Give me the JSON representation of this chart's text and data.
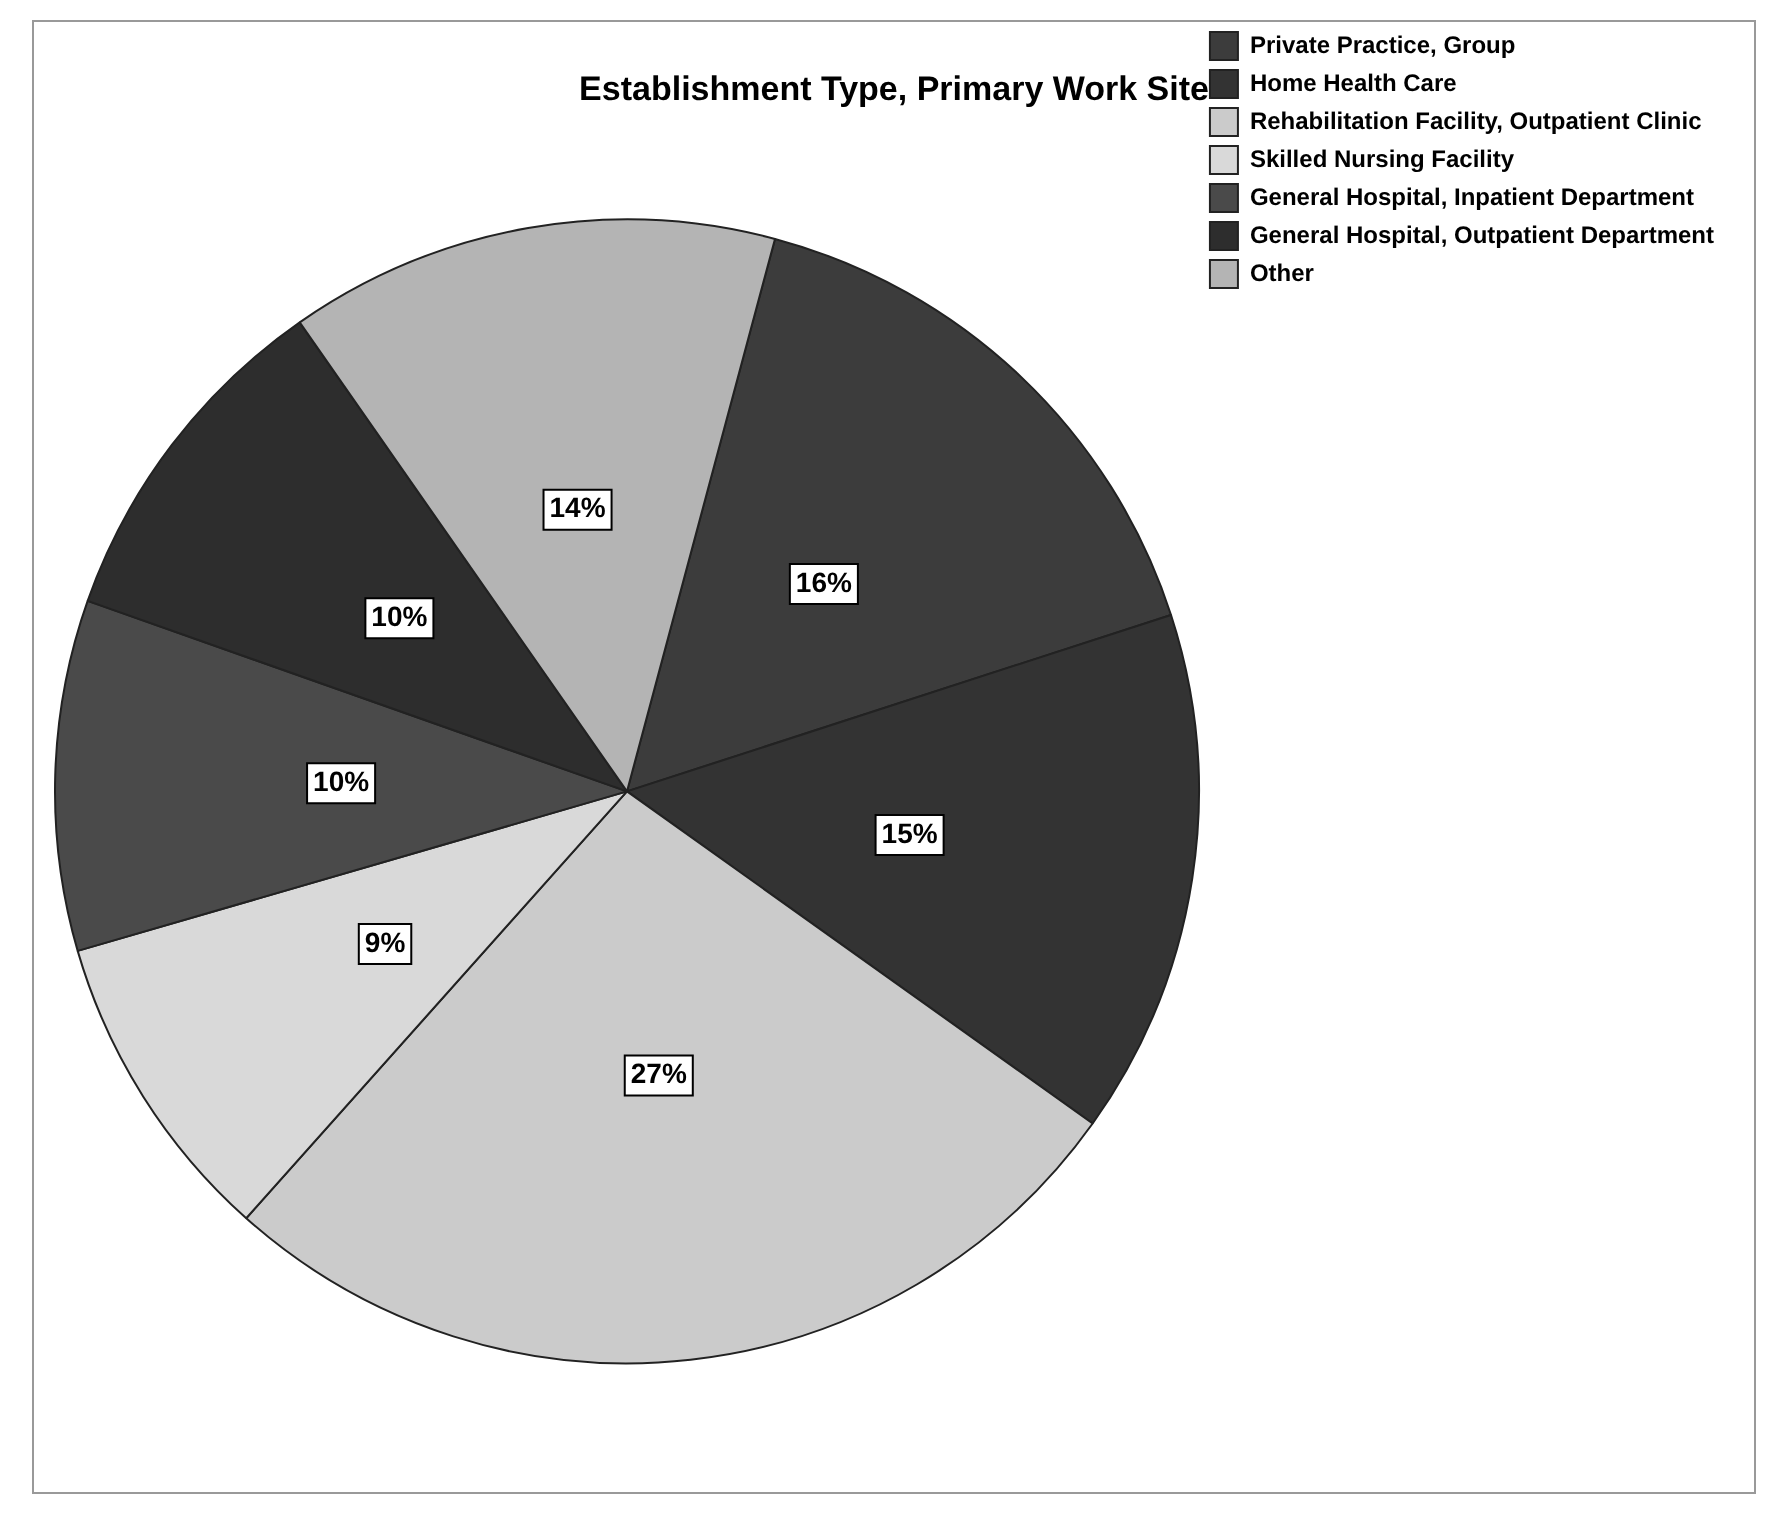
{
  "chart_data": {
    "type": "pie",
    "title": "Establishment Type, Primary Work Site",
    "categories": [
      "Private Practice, Group",
      "Home Health Care",
      "Rehabilitation Facility, Outpatient Clinic",
      "Skilled Nursing Facility",
      "General Hospital, Inpatient Department",
      "General Hospital, Outpatient Department",
      "Other"
    ],
    "values": [
      16,
      15,
      27,
      9,
      10,
      10,
      14
    ],
    "value_labels": [
      "16%",
      "15%",
      "27%",
      "9%",
      "10%",
      "10%",
      "14%"
    ],
    "colors": [
      "#3c3c3c",
      "#333333",
      "#cbcbcb",
      "#d9d9d9",
      "#4a4a4a",
      "#2d2d2d",
      "#b4b4b4"
    ],
    "legend": "right"
  }
}
